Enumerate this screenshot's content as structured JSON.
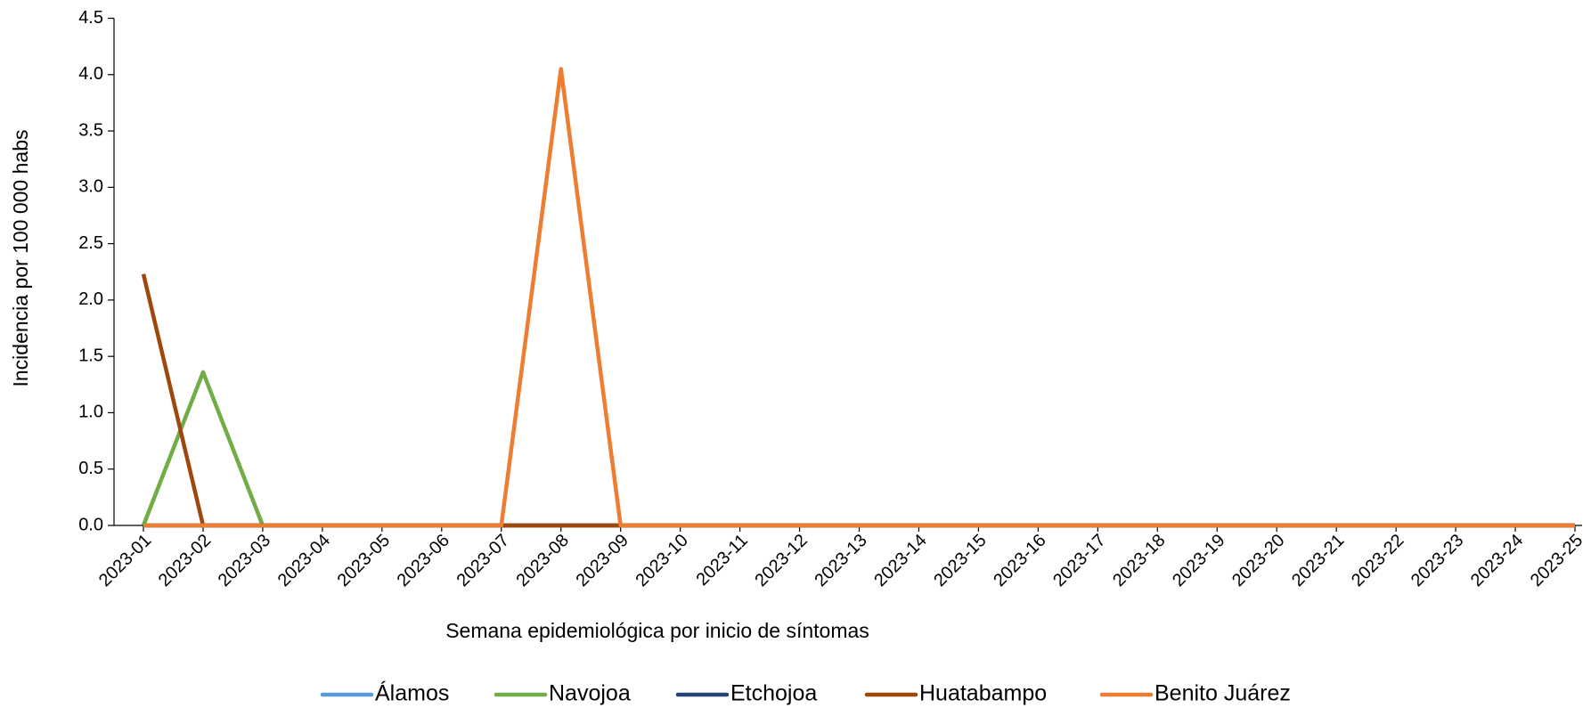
{
  "chart_data": {
    "type": "line",
    "x_label": "Semana epidemiológica por inicio de síntomas",
    "y_label": "Incidencia por 100 000 habs",
    "categories": [
      "2023-01",
      "2023-02",
      "2023-03",
      "2023-04",
      "2023-05",
      "2023-06",
      "2023-07",
      "2023-08",
      "2023-09",
      "2023-10",
      "2023-11",
      "2023-12",
      "2023-13",
      "2023-14",
      "2023-15",
      "2023-16",
      "2023-17",
      "2023-18",
      "2023-19",
      "2023-20",
      "2023-21",
      "2023-22",
      "2023-23",
      "2023-24",
      "2023-25"
    ],
    "ylim": [
      0,
      4.5
    ],
    "yticks": [
      {
        "value": 0,
        "label": "0.0"
      },
      {
        "value": 0.5,
        "label": "0.5"
      },
      {
        "value": 1,
        "label": "1.0"
      },
      {
        "value": 1.5,
        "label": "1.5"
      },
      {
        "value": 2,
        "label": "2.0"
      },
      {
        "value": 2.5,
        "label": "2.5"
      },
      {
        "value": 3,
        "label": "3.0"
      },
      {
        "value": 3.5,
        "label": "3.5"
      },
      {
        "value": 4,
        "label": "4.0"
      },
      {
        "value": 4.5,
        "label": "4.5"
      }
    ],
    "legend": "bottom",
    "series": [
      {
        "name": "Álamos",
        "color": "#5b9bd5",
        "values": [
          0,
          0,
          0,
          0,
          0,
          0,
          0,
          0,
          0,
          0,
          0,
          0,
          0,
          0,
          0,
          0,
          0,
          0,
          0,
          0,
          0,
          0,
          0,
          0,
          0
        ]
      },
      {
        "name": "Navojoa",
        "color": "#70ad47",
        "values": [
          0,
          1.36,
          0,
          0,
          0,
          0,
          0,
          0,
          0,
          0,
          0,
          0,
          0,
          0,
          0,
          0,
          0,
          0,
          0,
          0,
          0,
          0,
          0,
          0,
          0
        ]
      },
      {
        "name": "Etchojoa",
        "color": "#264478",
        "values": [
          0,
          0,
          0,
          0,
          0,
          0,
          0,
          0,
          0,
          0,
          0,
          0,
          0,
          0,
          0,
          0,
          0,
          0,
          0,
          0,
          0,
          0,
          0,
          0,
          0
        ]
      },
      {
        "name": "Huatabampo",
        "color": "#9e480e",
        "values": [
          2.23,
          0,
          0,
          0,
          0,
          0,
          0,
          0,
          0,
          0,
          0,
          0,
          0,
          0,
          0,
          0,
          0,
          0,
          0,
          0,
          0,
          0,
          0,
          0,
          0
        ]
      },
      {
        "name": "Benito Juárez",
        "color": "#ed7d31",
        "values": [
          0,
          0,
          0,
          0,
          0,
          0,
          0,
          4.05,
          0,
          0,
          0,
          0,
          0,
          0,
          0,
          0,
          0,
          0,
          0,
          0,
          0,
          0,
          0,
          0,
          0
        ]
      }
    ]
  }
}
